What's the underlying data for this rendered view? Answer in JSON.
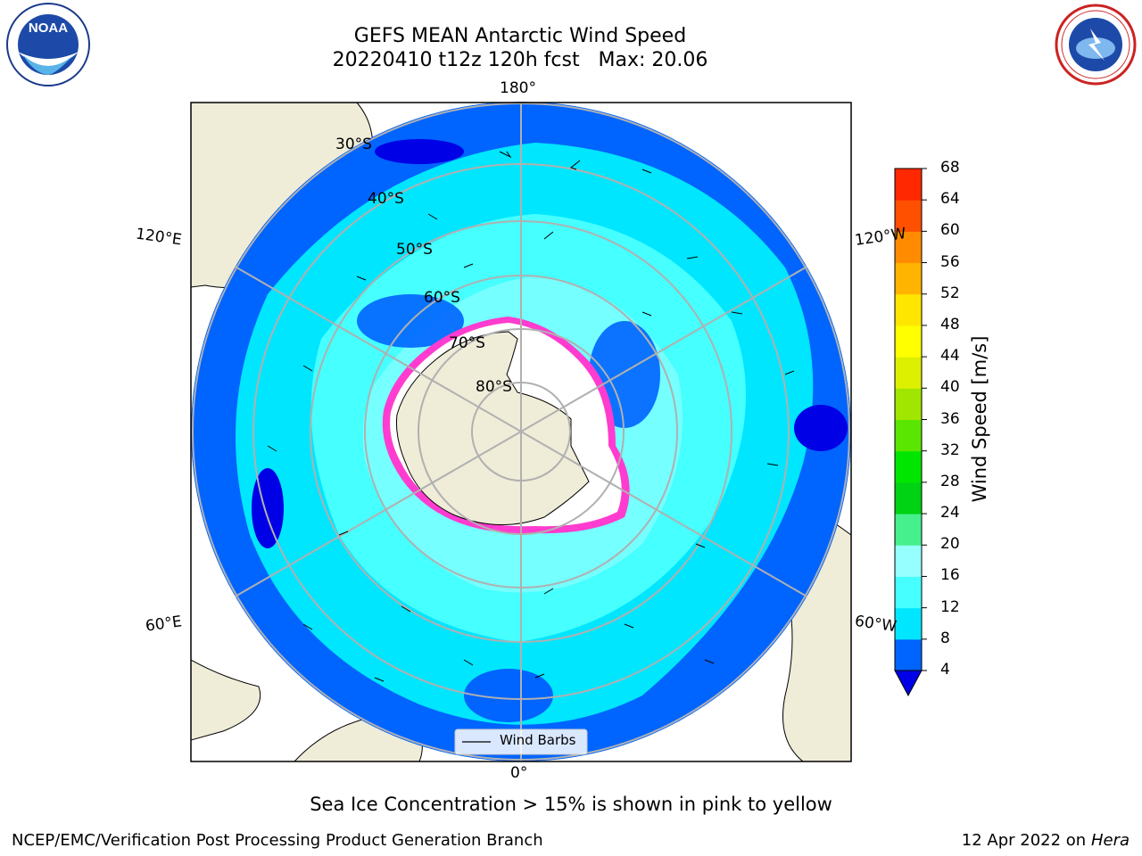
{
  "title_line1": "GEFS MEAN Antarctic Wind Speed",
  "title_line2": "20220410 t12z 120h fcst   Max: 20.06",
  "logos": {
    "left": "NOAA",
    "left_ring": "NATIONAL OCEANIC AND ATMOSPHERIC ADMINISTRATION",
    "left_ring_bottom": "U.S. DEPARTMENT OF COMMERCE",
    "right_ring": "NATIONAL WEATHER SERVICE"
  },
  "map": {
    "projection": "south polar stereographic",
    "lon_labels": {
      "top": "180°",
      "bottom": "0°",
      "left_upper": "120°E",
      "left_lower": "60°E",
      "right_upper": "120°W",
      "right_lower": "60°W"
    },
    "lat_labels": [
      "30°S",
      "40°S",
      "50°S",
      "60°S",
      "70°S",
      "80°S"
    ],
    "legend_label": "Wind Barbs"
  },
  "colorbar": {
    "title": "Wind Speed [m/s]",
    "ticks": [
      "68",
      "64",
      "60",
      "56",
      "52",
      "48",
      "44",
      "40",
      "36",
      "32",
      "28",
      "24",
      "20",
      "16",
      "12",
      "8",
      "4"
    ],
    "colors": [
      "#0000e6",
      "#0064ff",
      "#00e6ff",
      "#46ffff",
      "#96ffff",
      "#46f08c",
      "#00d214",
      "#00e600",
      "#5ae600",
      "#a0e600",
      "#dcf000",
      "#ffff00",
      "#ffe600",
      "#ffb400",
      "#ff8c00",
      "#ff5000",
      "#ff2800",
      "#ff0000"
    ]
  },
  "note": "Sea Ice Concentration > 15% is shown in pink to yellow",
  "footer_left": "NCEP/EMC/Verification Post Processing Product Generation Branch",
  "footer_date": "12 Apr 2022 on ",
  "footer_machine": "Hera"
}
